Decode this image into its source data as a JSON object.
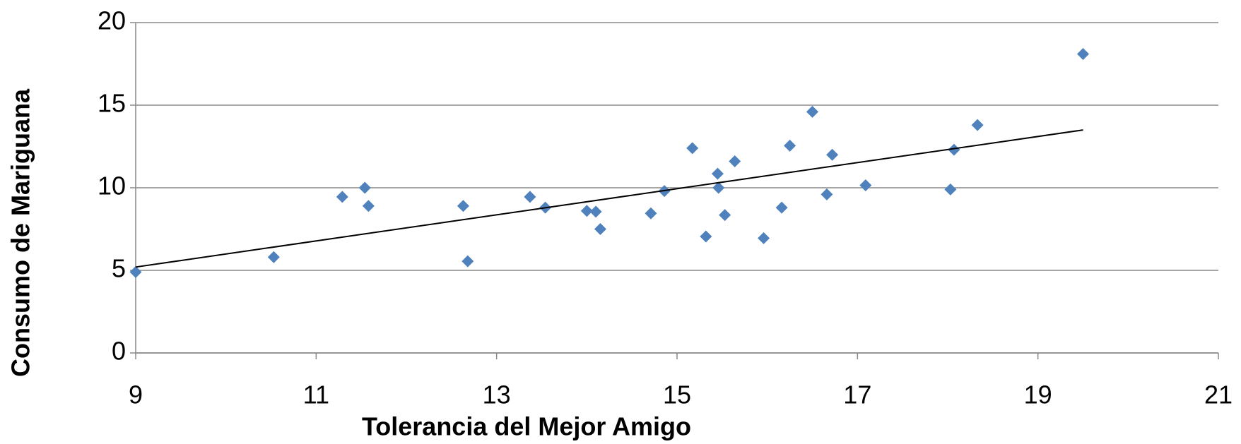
{
  "chart_data": {
    "type": "scatter",
    "x_label": "Tolerancia del Mejor Amigo",
    "y_label": "Consumo de Mariguana",
    "series": [
      {
        "color": "#4f81bd",
        "x": [
          9.0,
          10.53,
          11.29,
          11.54,
          11.58,
          12.63,
          12.68,
          13.37,
          13.54,
          14.0,
          14.1,
          14.15,
          14.71,
          14.86,
          15.17,
          15.32,
          15.45,
          15.46,
          15.53,
          15.64,
          15.96,
          16.16,
          16.25,
          16.5,
          16.66,
          16.72,
          17.09,
          18.03,
          18.07,
          18.33,
          19.5
        ],
        "values": [
          4.9,
          5.8,
          9.45,
          10.0,
          8.9,
          8.9,
          5.55,
          9.45,
          8.8,
          8.6,
          8.55,
          7.5,
          8.45,
          9.8,
          12.4,
          7.05,
          10.85,
          10.0,
          8.35,
          11.6,
          6.95,
          8.8,
          12.55,
          14.6,
          9.6,
          12.0,
          10.15,
          9.9,
          12.3,
          13.8,
          18.1
        ]
      }
    ],
    "trendline": {
      "color": "#000000",
      "x": [
        9,
        19.5
      ],
      "values": [
        5.2,
        13.5
      ]
    },
    "xlim": [
      9,
      21
    ],
    "xticks": [
      9,
      11,
      13,
      15,
      17,
      19,
      21
    ],
    "ylim": [
      0,
      20
    ],
    "yticks": [
      0,
      5,
      10,
      15,
      20
    ],
    "grid": true
  }
}
